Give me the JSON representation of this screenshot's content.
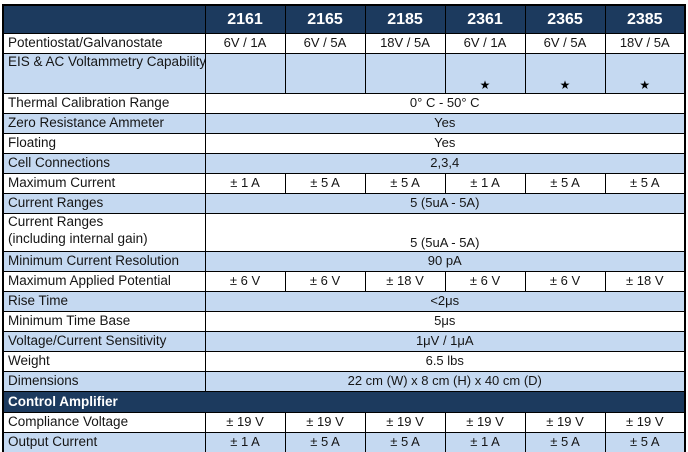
{
  "colors": {
    "navy": "#1c3a5e",
    "light_blue": "#c5d9f1",
    "white": "#ffffff",
    "border": "#000000",
    "header_text": "#ffffff"
  },
  "table": {
    "column_headers": [
      "",
      "2161",
      "2165",
      "2185",
      "2361",
      "2365",
      "2385"
    ],
    "star_glyph": "★",
    "rows": [
      {
        "label": "Potentiostat/Galvanostate",
        "type": "cells",
        "bg": "white",
        "values": [
          "6V / 1A",
          "6V / 5A",
          "18V / 5A",
          "6V / 1A",
          "6V / 5A",
          "18V / 5A"
        ]
      },
      {
        "label": "EIS & AC Voltammetry Capability",
        "type": "cells",
        "bg": "blue",
        "tall": true,
        "values": [
          "",
          "",
          "",
          "★",
          "★",
          "★"
        ]
      },
      {
        "label": "Thermal Calibration Range",
        "type": "merged",
        "bg": "white",
        "value": "0° C - 50° C"
      },
      {
        "label": "Zero Resistance Ammeter",
        "type": "merged",
        "bg": "blue",
        "value": "Yes"
      },
      {
        "label": "Floating",
        "type": "merged",
        "bg": "white",
        "value": "Yes"
      },
      {
        "label": "Cell Connections",
        "type": "merged",
        "bg": "blue",
        "value": "2,3,4"
      },
      {
        "label": "Maximum Current",
        "type": "cells",
        "bg": "white",
        "values": [
          "± 1 A",
          "± 5 A",
          "± 5 A",
          "± 1 A",
          "± 5 A",
          "± 5 A"
        ]
      },
      {
        "label": "Current Ranges",
        "type": "merged",
        "bg": "blue",
        "value": "5 (5uA - 5A)"
      },
      {
        "label": "Current Ranges",
        "label_line2": "(including internal gain)",
        "type": "merged",
        "bg": "white",
        "twoline": true,
        "value": "5 (5uA - 5A)"
      },
      {
        "label": "Minimum Current Resolution",
        "type": "merged",
        "bg": "blue",
        "value": "90 pA"
      },
      {
        "label": "Maximum Applied Potential",
        "type": "cells",
        "bg": "white",
        "values": [
          "± 6 V",
          "± 6 V",
          "± 18 V",
          "± 6 V",
          "± 6 V",
          "± 18 V"
        ]
      },
      {
        "label": "Rise Time",
        "type": "merged",
        "bg": "blue",
        "value": "<2μs"
      },
      {
        "label": "Minimum Time Base",
        "type": "merged",
        "bg": "white",
        "value": "5μs"
      },
      {
        "label": "Voltage/Current Sensitivity",
        "type": "merged",
        "bg": "blue",
        "value": "1μV / 1μA"
      },
      {
        "label": "Weight",
        "type": "merged",
        "bg": "white",
        "value": "6.5 lbs"
      },
      {
        "label": "Dimensions",
        "type": "merged",
        "bg": "blue",
        "value": "22 cm (W) x 8 cm (H) x 40 cm (D)"
      },
      {
        "label": "Control Amplifier",
        "type": "section",
        "bg": "navy"
      },
      {
        "label": "Compliance Voltage",
        "type": "cells",
        "bg": "white",
        "values": [
          "± 19 V",
          "± 19 V",
          "± 19 V",
          "± 19 V",
          "± 19 V",
          "± 19 V"
        ]
      },
      {
        "label": "Output Current",
        "type": "cells",
        "bg": "blue",
        "values": [
          "± 1 A",
          "± 5 A",
          "± 5 A",
          "± 1 A",
          "± 5 A",
          "± 5 A"
        ]
      }
    ]
  }
}
